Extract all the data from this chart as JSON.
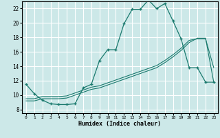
{
  "xlabel": "Humidex (Indice chaleur)",
  "bg_color": "#cce8e8",
  "line_color": "#1a7a6e",
  "grid_color": "#ffffff",
  "xlim": [
    -0.5,
    23.5
  ],
  "ylim": [
    7.5,
    23.0
  ],
  "xticks": [
    0,
    1,
    2,
    3,
    4,
    5,
    6,
    7,
    8,
    9,
    10,
    11,
    12,
    13,
    14,
    15,
    16,
    17,
    18,
    19,
    20,
    21,
    22,
    23
  ],
  "yticks": [
    8,
    10,
    12,
    14,
    16,
    18,
    20,
    22
  ],
  "line1_x": [
    0,
    1,
    2,
    3,
    4,
    5,
    6,
    7,
    8,
    9,
    10,
    11,
    12,
    13,
    14,
    15,
    16,
    17,
    18,
    19,
    20,
    21,
    22,
    23
  ],
  "line1_y": [
    11.5,
    10.2,
    9.3,
    8.8,
    8.7,
    8.7,
    8.8,
    11.0,
    11.5,
    14.8,
    16.3,
    16.3,
    19.9,
    21.9,
    21.9,
    23.2,
    22.0,
    22.7,
    20.3,
    17.8,
    13.8,
    13.8,
    11.8,
    11.8
  ],
  "line2_x": [
    0,
    1,
    2,
    3,
    4,
    5,
    6,
    7,
    8,
    9,
    10,
    11,
    12,
    13,
    14,
    15,
    16,
    17,
    18,
    19,
    20,
    21,
    22,
    23
  ],
  "line2_y": [
    9.2,
    9.2,
    9.5,
    9.5,
    9.5,
    9.6,
    10.0,
    10.4,
    10.8,
    11.0,
    11.4,
    11.8,
    12.2,
    12.6,
    13.0,
    13.4,
    13.8,
    14.5,
    15.3,
    16.2,
    17.3,
    17.9,
    17.9,
    11.8
  ],
  "line3_x": [
    0,
    1,
    2,
    3,
    4,
    5,
    6,
    7,
    8,
    9,
    10,
    11,
    12,
    13,
    14,
    15,
    16,
    17,
    18,
    19,
    20,
    21,
    22,
    23
  ],
  "line3_y": [
    9.5,
    9.5,
    9.8,
    9.8,
    9.8,
    9.9,
    10.3,
    10.7,
    11.1,
    11.3,
    11.7,
    12.1,
    12.5,
    12.9,
    13.3,
    13.7,
    14.1,
    14.8,
    15.6,
    16.5,
    17.6,
    17.8,
    17.8,
    13.8
  ]
}
